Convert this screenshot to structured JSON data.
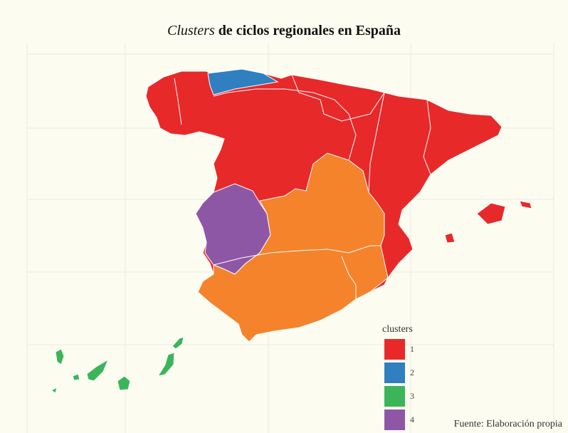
{
  "title": {
    "emphasis": "Clusters",
    "rest": "de ciclos regionales en España"
  },
  "legend": {
    "title": "clusters",
    "items": [
      {
        "label": "1",
        "color": "#e8292a"
      },
      {
        "label": "2",
        "color": "#2f7fc1"
      },
      {
        "label": "3",
        "color": "#3cb55a"
      },
      {
        "label": "4",
        "color": "#8e57a6"
      },
      {
        "label": null,
        "color": "#f4832c"
      }
    ]
  },
  "caption": "Fuente: Elaboración propia"
}
